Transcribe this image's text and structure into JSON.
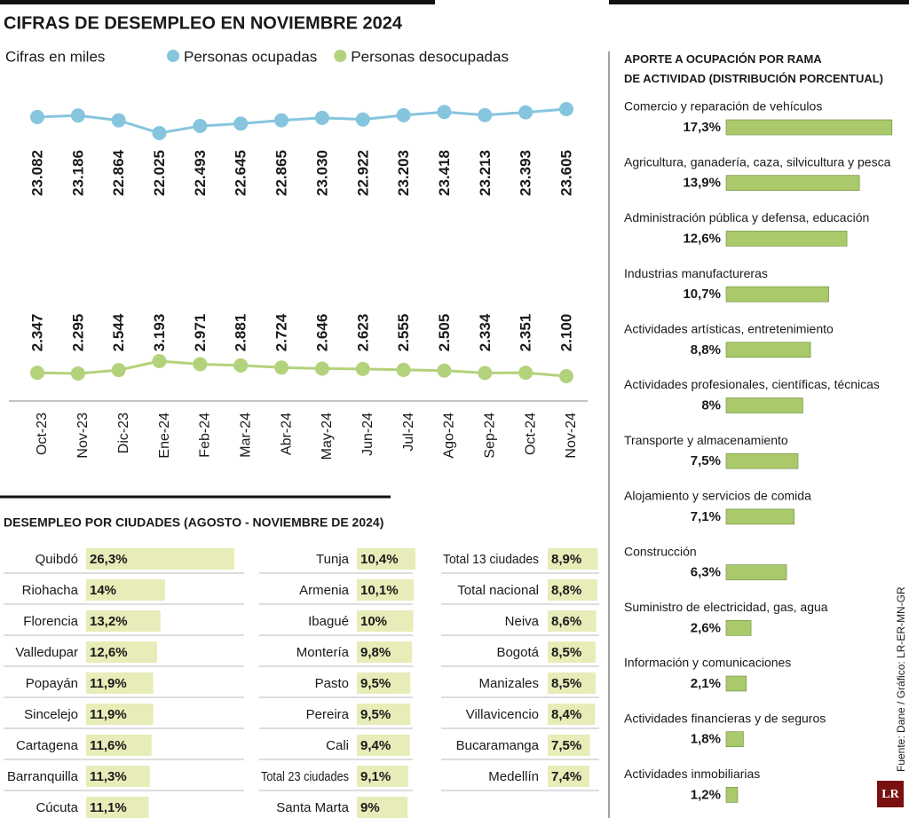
{
  "chart_data": [
    {
      "type": "line",
      "title": "CIFRAS DE DESEMPLEO EN NOVIEMBRE 2024",
      "subtitle": "Cifras en miles",
      "categories": [
        "Oct-23",
        "Nov-23",
        "Dic-23",
        "Ene-24",
        "Feb-24",
        "Mar-24",
        "Abr-24",
        "May-24",
        "Jun-24",
        "Jul-24",
        "Ago-24",
        "Sep-24",
        "Oct-24",
        "Nov-24"
      ],
      "series": [
        {
          "name": "Personas ocupadas",
          "color": "#86c5de",
          "values": [
            23082,
            23186,
            22864,
            22025,
            22493,
            22645,
            22865,
            23030,
            22922,
            23203,
            23418,
            23213,
            23393,
            23605
          ],
          "value_labels": [
            "23.082",
            "23.186",
            "22.864",
            "22.025",
            "22.493",
            "22.645",
            "22.865",
            "23.030",
            "22.922",
            "23.203",
            "23.418",
            "23.213",
            "23.393",
            "23.605"
          ]
        },
        {
          "name": "Personas desocupadas",
          "color": "#b3d27c",
          "values": [
            2347,
            2295,
            2544,
            3193,
            2971,
            2881,
            2724,
            2646,
            2623,
            2555,
            2505,
            2334,
            2351,
            2100
          ],
          "value_labels": [
            "2.347",
            "2.295",
            "2.544",
            "3.193",
            "2.971",
            "2.881",
            "2.724",
            "2.646",
            "2.623",
            "2.555",
            "2.505",
            "2.334",
            "2.351",
            "2.100"
          ]
        }
      ]
    },
    {
      "type": "bar",
      "orientation": "horizontal",
      "title": "DESEMPLEO POR CIUDADES (AGOSTO - NOVIEMBRE DE 2024)",
      "color": "#e8ecb8",
      "categories": [
        "Quibdó",
        "Riohacha",
        "Florencia",
        "Valledupar",
        "Popayán",
        "Sincelejo",
        "Cartagena",
        "Barranquilla",
        "Cúcuta",
        "Tunja",
        "Armenia",
        "Ibagué",
        "Montería",
        "Pasto",
        "Pereira",
        "Cali",
        "Total 23 ciudades",
        "Santa Marta",
        "Total 13 ciudades",
        "Total nacional",
        "Neiva",
        "Bogotá",
        "Manizales",
        "Villavicencio",
        "Bucaramanga",
        "Medellín"
      ],
      "values": [
        26.3,
        14,
        13.2,
        12.6,
        11.9,
        11.9,
        11.6,
        11.3,
        11.1,
        10.4,
        10.1,
        10,
        9.8,
        9.5,
        9.5,
        9.4,
        9.1,
        9,
        8.9,
        8.8,
        8.6,
        8.5,
        8.5,
        8.4,
        7.5,
        7.4
      ],
      "value_labels": [
        "26,3%",
        "14%",
        "13,2%",
        "12,6%",
        "11,9%",
        "11,9%",
        "11,6%",
        "11,3%",
        "11,1%",
        "10,4%",
        "10,1%",
        "10%",
        "9,8%",
        "9,5%",
        "9,5%",
        "9,4%",
        "9,1%",
        "9%",
        "8,9%",
        "8,8%",
        "8,6%",
        "8,5%",
        "8,5%",
        "8,4%",
        "7,5%",
        "7,4%"
      ]
    },
    {
      "type": "bar",
      "orientation": "horizontal",
      "title": "APORTE A OCUPACIÓN POR RAMA\nDE ACTIVIDAD (DISTRIBUCIÓN PORCENTUAL)",
      "color": "#a9c96b",
      "categories": [
        "Comercio y reparación de vehículos",
        "Agricultura, ganadería, caza, silvicultura y pesca",
        "Administración pública y defensa, educación",
        "Industrias manufactureras",
        "Actividades artísticas, entretenimiento",
        "Actividades profesionales, científicas, técnicas",
        "Transporte y almacenamiento",
        "Alojamiento y servicios de comida",
        "Construcción",
        "Suministro de electricidad, gas, agua",
        "Información y comunicaciones",
        "Actividades financieras y de seguros",
        "Actividades inmobiliarias"
      ],
      "values": [
        17.3,
        13.9,
        12.6,
        10.7,
        8.8,
        8,
        7.5,
        7.1,
        6.3,
        2.6,
        2.1,
        1.8,
        1.2
      ],
      "value_labels": [
        "17,3%",
        "13,9%",
        "12,6%",
        "10,7%",
        "8,8%",
        "8%",
        "7,5%",
        "7,1%",
        "6,3%",
        "2,6%",
        "2,1%",
        "1,8%",
        "1,2%"
      ]
    }
  ],
  "source": "Fuente: Dane / Gráfico: LR-ER-MN-GR",
  "logo": "LR"
}
